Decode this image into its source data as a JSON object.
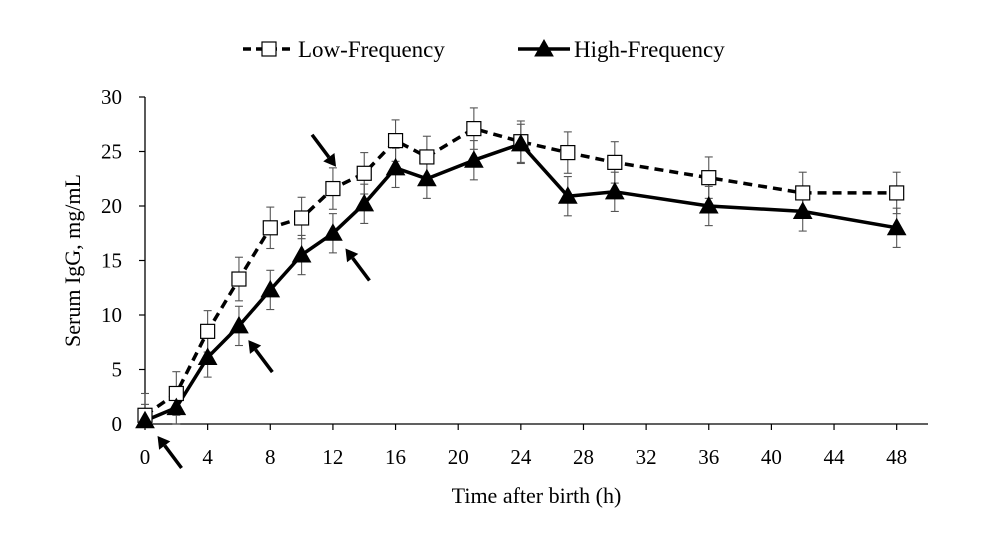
{
  "chart_data": {
    "type": "line",
    "title": "",
    "xlabel": "Time after birth (h)",
    "ylabel": "Serum IgG, mg/mL",
    "xlim": [
      0,
      50
    ],
    "ylim": [
      0,
      30
    ],
    "x_ticks": [
      0,
      4,
      8,
      12,
      16,
      20,
      24,
      28,
      32,
      36,
      40,
      44,
      48
    ],
    "y_ticks": [
      0,
      5,
      10,
      15,
      20,
      25,
      30
    ],
    "grid": false,
    "legend_position": "top-center",
    "error_bars": true,
    "series": [
      {
        "name": "Low-Frequency",
        "line_style": "dashed",
        "marker": "open-square",
        "color": "#000000",
        "points": [
          {
            "x": 0,
            "y": 0.8,
            "err": 2.0
          },
          {
            "x": 2,
            "y": 2.8,
            "err": 2.0
          },
          {
            "x": 4,
            "y": 8.5,
            "err": 1.9
          },
          {
            "x": 6,
            "y": 13.3,
            "err": 2.0
          },
          {
            "x": 8,
            "y": 18.0,
            "err": 1.9
          },
          {
            "x": 10,
            "y": 18.9,
            "err": 1.9
          },
          {
            "x": 12,
            "y": 21.6,
            "err": 1.9
          },
          {
            "x": 14,
            "y": 23.0,
            "err": 1.9
          },
          {
            "x": 16,
            "y": 26.0,
            "err": 1.9
          },
          {
            "x": 18,
            "y": 24.5,
            "err": 1.9
          },
          {
            "x": 21,
            "y": 27.1,
            "err": 1.9
          },
          {
            "x": 24,
            "y": 25.9,
            "err": 1.9
          },
          {
            "x": 27,
            "y": 24.9,
            "err": 1.9
          },
          {
            "x": 30,
            "y": 24.0,
            "err": 1.9
          },
          {
            "x": 36,
            "y": 22.6,
            "err": 1.9
          },
          {
            "x": 42,
            "y": 21.2,
            "err": 1.9
          },
          {
            "x": 48,
            "y": 21.2,
            "err": 1.9
          }
        ]
      },
      {
        "name": "High-Frequency",
        "line_style": "solid",
        "marker": "filled-triangle",
        "color": "#000000",
        "points": [
          {
            "x": 0,
            "y": 0.3,
            "err": 1.5
          },
          {
            "x": 2,
            "y": 1.5,
            "err": 1.8
          },
          {
            "x": 4,
            "y": 6.1,
            "err": 1.8
          },
          {
            "x": 6,
            "y": 9.0,
            "err": 1.8
          },
          {
            "x": 8,
            "y": 12.3,
            "err": 1.8
          },
          {
            "x": 10,
            "y": 15.5,
            "err": 1.8
          },
          {
            "x": 12,
            "y": 17.5,
            "err": 1.8
          },
          {
            "x": 14,
            "y": 20.2,
            "err": 1.8
          },
          {
            "x": 16,
            "y": 23.5,
            "err": 1.8
          },
          {
            "x": 18,
            "y": 22.5,
            "err": 1.8
          },
          {
            "x": 21,
            "y": 24.2,
            "err": 1.8
          },
          {
            "x": 24,
            "y": 25.7,
            "err": 1.8
          },
          {
            "x": 27,
            "y": 20.9,
            "err": 1.8
          },
          {
            "x": 30,
            "y": 21.3,
            "err": 1.8
          },
          {
            "x": 36,
            "y": 20.0,
            "err": 1.8
          },
          {
            "x": 42,
            "y": 19.5,
            "err": 1.8
          },
          {
            "x": 48,
            "y": 18.0,
            "err": 1.8
          }
        ]
      }
    ],
    "annotations": [
      {
        "type": "arrow",
        "direction": "up-left",
        "points_to": {
          "x": 0.8,
          "y": -1.1
        }
      },
      {
        "type": "arrow",
        "direction": "up-left",
        "points_to": {
          "x": 6.6,
          "y": 7.7
        }
      },
      {
        "type": "arrow",
        "direction": "up-left",
        "points_to": {
          "x": 12.8,
          "y": 16.1
        }
      },
      {
        "type": "arrow",
        "direction": "down-right",
        "points_to": {
          "x": 12.2,
          "y": 23.6
        }
      }
    ]
  }
}
